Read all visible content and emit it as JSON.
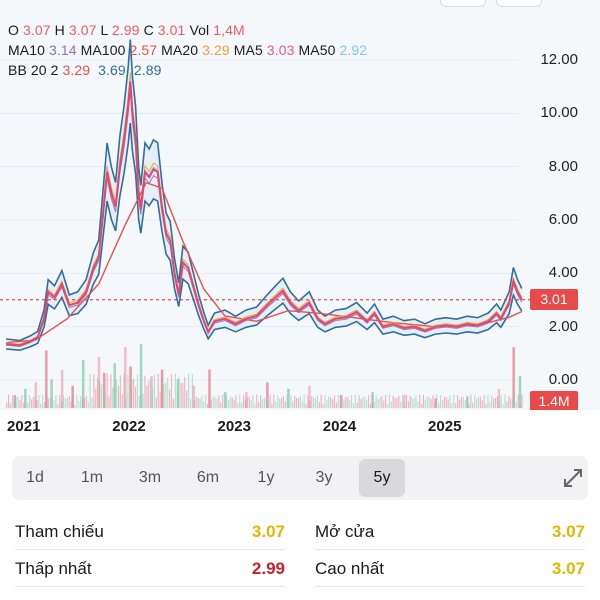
{
  "legend": {
    "row1": [
      {
        "label": "O",
        "value": "3.07",
        "color": "#ee5a6a"
      },
      {
        "label": "H",
        "value": "3.07",
        "color": "#ee5a6a"
      },
      {
        "label": "L",
        "value": "2.99",
        "color": "#ee5a6a"
      },
      {
        "label": "C",
        "value": "3.01",
        "color": "#ee5a6a"
      },
      {
        "label": "Vol",
        "value": "1,4M",
        "color": "#ee5a6a"
      }
    ],
    "row2": [
      {
        "label": "MA10",
        "value": "3.14",
        "color": "#8e6fc9"
      },
      {
        "label": "MA100",
        "value": "2.57",
        "color": "#e8504e"
      },
      {
        "label": "MA20",
        "value": "3.29",
        "color": "#f0a040"
      },
      {
        "label": "MA5",
        "value": "3.03",
        "color": "#e3579a"
      },
      {
        "label": "MA50",
        "value": "2.92",
        "color": "#7fc6ee"
      }
    ],
    "row3_label": "BB 20 2",
    "row3": [
      {
        "value": "3.29",
        "color": "#e8504e"
      },
      {
        "value": "3.69",
        "color": "#2e6f9e"
      },
      {
        "value": "2.89",
        "color": "#2e6f9e"
      }
    ]
  },
  "y_axis_labels": [
    "12.00",
    "10.00",
    "8.00",
    "6.00",
    "4.00",
    "2.00",
    "0.00"
  ],
  "price_tag": "3.01",
  "volume_tag": "1.4M",
  "x_axis_labels": [
    "2021",
    "2022",
    "2023",
    "2024",
    "2025"
  ],
  "tabs": [
    {
      "label": "1d",
      "active": false
    },
    {
      "label": "1m",
      "active": false
    },
    {
      "label": "3m",
      "active": false
    },
    {
      "label": "6m",
      "active": false
    },
    {
      "label": "1y",
      "active": false
    },
    {
      "label": "3y",
      "active": false
    },
    {
      "label": "5y",
      "active": true
    }
  ],
  "expand_icon": "expand-arrows-icon",
  "stats": {
    "ref_label": "Tham chiếu",
    "ref_value": "3.07",
    "low_label": "Thấp nhất",
    "low_value": "2.99",
    "open_label": "Mở cửa",
    "open_value": "3.07",
    "high_label": "Cao nhất",
    "high_value": "3.07"
  },
  "colors": {
    "ref": "#e8b400",
    "down": "#c8202a",
    "up_tag": "#e84a4a",
    "bb_band": "#2e6f9e",
    "price_line": "#e3476a"
  },
  "chart_data": {
    "type": "line",
    "x_range": [
      2020.8,
      2025.75
    ],
    "ylim": [
      0,
      12
    ],
    "close_series": [
      [
        2020.82,
        1.35
      ],
      [
        2020.95,
        1.3
      ],
      [
        2021.05,
        1.45
      ],
      [
        2021.12,
        1.6
      ],
      [
        2021.18,
        2.3
      ],
      [
        2021.22,
        3.3
      ],
      [
        2021.28,
        3.1
      ],
      [
        2021.35,
        3.6
      ],
      [
        2021.42,
        2.8
      ],
      [
        2021.5,
        2.9
      ],
      [
        2021.58,
        3.3
      ],
      [
        2021.65,
        4.2
      ],
      [
        2021.7,
        4.6
      ],
      [
        2021.73,
        5.8
      ],
      [
        2021.78,
        7.8
      ],
      [
        2021.82,
        7.0
      ],
      [
        2021.86,
        6.5
      ],
      [
        2021.9,
        8.0
      ],
      [
        2021.94,
        9.0
      ],
      [
        2021.98,
        10.3
      ],
      [
        2022.0,
        11.2
      ],
      [
        2022.02,
        10.0
      ],
      [
        2022.05,
        9.0
      ],
      [
        2022.08,
        7.0
      ],
      [
        2022.1,
        6.4
      ],
      [
        2022.14,
        7.8
      ],
      [
        2022.18,
        7.6
      ],
      [
        2022.22,
        7.9
      ],
      [
        2022.26,
        7.8
      ],
      [
        2022.3,
        6.5
      ],
      [
        2022.34,
        5.5
      ],
      [
        2022.38,
        5.2
      ],
      [
        2022.42,
        4.0
      ],
      [
        2022.46,
        3.2
      ],
      [
        2022.5,
        4.4
      ],
      [
        2022.55,
        4.2
      ],
      [
        2022.6,
        3.5
      ],
      [
        2022.65,
        2.8
      ],
      [
        2022.7,
        2.2
      ],
      [
        2022.74,
        1.8
      ],
      [
        2022.8,
        2.2
      ],
      [
        2022.9,
        2.3
      ],
      [
        2023.0,
        2.1
      ],
      [
        2023.1,
        2.3
      ],
      [
        2023.2,
        2.4
      ],
      [
        2023.3,
        2.8
      ],
      [
        2023.38,
        3.1
      ],
      [
        2023.45,
        3.35
      ],
      [
        2023.52,
        2.9
      ],
      [
        2023.6,
        2.6
      ],
      [
        2023.7,
        2.9
      ],
      [
        2023.78,
        2.3
      ],
      [
        2023.85,
        2.1
      ],
      [
        2023.95,
        2.3
      ],
      [
        2024.05,
        2.35
      ],
      [
        2024.15,
        2.55
      ],
      [
        2024.25,
        2.2
      ],
      [
        2024.32,
        2.5
      ],
      [
        2024.4,
        2.0
      ],
      [
        2024.5,
        2.1
      ],
      [
        2024.6,
        1.95
      ],
      [
        2024.7,
        2.0
      ],
      [
        2024.8,
        1.85
      ],
      [
        2024.9,
        2.0
      ],
      [
        2025.0,
        2.05
      ],
      [
        2025.1,
        2.0
      ],
      [
        2025.2,
        2.1
      ],
      [
        2025.3,
        2.05
      ],
      [
        2025.4,
        2.2
      ],
      [
        2025.48,
        2.5
      ],
      [
        2025.52,
        2.3
      ],
      [
        2025.56,
        2.6
      ],
      [
        2025.6,
        2.9
      ],
      [
        2025.64,
        3.7
      ],
      [
        2025.68,
        3.3
      ],
      [
        2025.72,
        3.01
      ]
    ],
    "ma100_series": [
      [
        2020.82,
        1.4
      ],
      [
        2021.1,
        1.5
      ],
      [
        2021.4,
        2.3
      ],
      [
        2021.7,
        3.6
      ],
      [
        2021.95,
        5.8
      ],
      [
        2022.15,
        7.4
      ],
      [
        2022.3,
        7.2
      ],
      [
        2022.5,
        5.2
      ],
      [
        2022.7,
        3.4
      ],
      [
        2022.9,
        2.4
      ],
      [
        2023.2,
        2.2
      ],
      [
        2023.5,
        2.6
      ],
      [
        2023.8,
        2.5
      ],
      [
        2024.1,
        2.35
      ],
      [
        2024.5,
        2.15
      ],
      [
        2024.9,
        2.0
      ],
      [
        2025.3,
        2.05
      ],
      [
        2025.6,
        2.35
      ],
      [
        2025.72,
        2.57
      ]
    ],
    "volume": [
      [
        2020.9,
        0.4
      ],
      [
        2021.0,
        0.6
      ],
      [
        2021.1,
        0.8
      ],
      [
        2021.2,
        1.8
      ],
      [
        2021.25,
        0.9
      ],
      [
        2021.35,
        1.2
      ],
      [
        2021.45,
        0.7
      ],
      [
        2021.55,
        1.5
      ],
      [
        2021.7,
        1.6
      ],
      [
        2021.75,
        1.1
      ],
      [
        2021.85,
        1.4
      ],
      [
        2021.95,
        1.9
      ],
      [
        2022.0,
        1.3
      ],
      [
        2022.1,
        2.0
      ],
      [
        2022.2,
        1.0
      ],
      [
        2022.3,
        1.2
      ],
      [
        2022.45,
        0.9
      ],
      [
        2022.6,
        0.7
      ],
      [
        2022.75,
        1.2
      ],
      [
        2022.9,
        0.5
      ],
      [
        2023.1,
        0.5
      ],
      [
        2023.3,
        0.8
      ],
      [
        2023.5,
        0.6
      ],
      [
        2023.7,
        0.7
      ],
      [
        2024.0,
        0.4
      ],
      [
        2024.3,
        0.5
      ],
      [
        2024.6,
        0.4
      ],
      [
        2024.9,
        0.3
      ],
      [
        2025.2,
        0.35
      ],
      [
        2025.5,
        0.6
      ],
      [
        2025.64,
        1.9
      ],
      [
        2025.7,
        1.0
      ]
    ],
    "reference_line": 3.01
  }
}
